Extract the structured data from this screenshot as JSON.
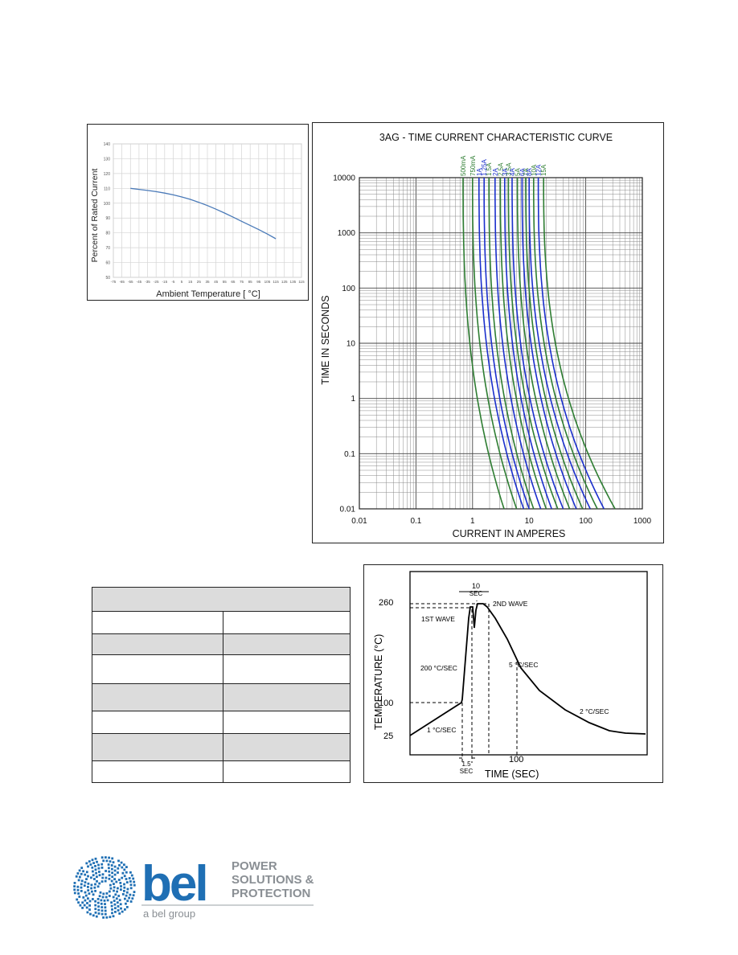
{
  "derating_chart": {
    "chart_data": {
      "type": "line",
      "xlabel": "Ambient Temperature [ °C]",
      "ylabel": "Percent of Rated Current",
      "xlim": [
        -75,
        115
      ],
      "ylim": [
        50,
        140
      ],
      "x_ticks": [
        "-75",
        "-65",
        "-55",
        "-45",
        "-35",
        "-25",
        "-15",
        "-5",
        "5",
        "15",
        "25",
        "35",
        "45",
        "55",
        "65",
        "75",
        "85",
        "95",
        "105",
        "115",
        "125",
        "135",
        "115"
      ],
      "y_ticks": [
        "50",
        "60",
        "70",
        "80",
        "90",
        "100",
        "110",
        "120",
        "130",
        "140"
      ],
      "grid": true,
      "series": [
        {
          "x": [
            -55,
            -45,
            -35,
            -25,
            -15,
            -5,
            5,
            15,
            25,
            35,
            45,
            55,
            65,
            75,
            85,
            95,
            105,
            115
          ],
          "y": [
            110,
            109.3,
            108.6,
            107.8,
            106.8,
            105.6,
            104.2,
            102.6,
            100.6,
            98.4,
            96,
            93.4,
            90.6,
            87.8,
            85,
            82.2,
            79.2,
            76
          ]
        }
      ],
      "color": "#4a7ab8"
    }
  },
  "tcc_chart": {
    "chart_data": {
      "type": "line",
      "title": "3AG - TIME CURRENT CHARACTERISTIC CURVE",
      "xlabel": "CURRENT IN AMPERES",
      "ylabel": "TIME IN SECONDS",
      "xscale": "log",
      "yscale": "log",
      "xlim": [
        0.01,
        1000
      ],
      "ylim": [
        0.01,
        10000
      ],
      "x_ticks": [
        "0.01",
        "0.1",
        "1",
        "10",
        "100",
        "1000"
      ],
      "y_ticks": [
        "0.01",
        "0.1",
        "1",
        "10",
        "100",
        "1000",
        "10000"
      ],
      "grid": true,
      "series": [
        {
          "name": "500mA",
          "current_at_10000s": 0.68,
          "current_at_0.01s": 3.6,
          "color": "#2e7d32"
        },
        {
          "name": "750mA",
          "current_at_10000s": 1.0,
          "current_at_0.01s": 6.0,
          "color": "#2e7d32"
        },
        {
          "name": "1A",
          "current_at_10000s": 1.3,
          "current_at_0.01s": 8.0,
          "color": "#1a2fcc"
        },
        {
          "name": "1.25A",
          "current_at_10000s": 1.6,
          "current_at_0.01s": 10.0,
          "color": "#1a2fcc"
        },
        {
          "name": "1.5A",
          "current_at_10000s": 1.95,
          "current_at_0.01s": 12.0,
          "color": "#2e7d32"
        },
        {
          "name": "2A",
          "current_at_10000s": 2.5,
          "current_at_0.01s": 16.0,
          "color": "#1a2fcc"
        },
        {
          "name": "2.5A",
          "current_at_10000s": 3.1,
          "current_at_0.01s": 20.0,
          "color": "#2e7d32"
        },
        {
          "name": "3A",
          "current_at_10000s": 3.7,
          "current_at_0.01s": 25.0,
          "color": "#1a2fcc"
        },
        {
          "name": "3.5A",
          "current_at_10000s": 4.3,
          "current_at_0.01s": 32.0,
          "color": "#2e7d32"
        },
        {
          "name": "4A",
          "current_at_10000s": 5.0,
          "current_at_0.01s": 40.0,
          "color": "#1a2fcc"
        },
        {
          "name": "5A",
          "current_at_10000s": 6.2,
          "current_at_0.01s": 52.0,
          "color": "#2e7d32"
        },
        {
          "name": "6A",
          "current_at_10000s": 7.5,
          "current_at_0.01s": 68.0,
          "color": "#1a2fcc"
        },
        {
          "name": "7A",
          "current_at_10000s": 8.7,
          "current_at_0.01s": 88.0,
          "color": "#2e7d32"
        },
        {
          "name": "8A",
          "current_at_10000s": 10.0,
          "current_at_0.01s": 120.0,
          "color": "#1a2fcc"
        },
        {
          "name": "10A",
          "current_at_10000s": 12.0,
          "current_at_0.01s": 160.0,
          "color": "#2e7d32"
        },
        {
          "name": "12A",
          "current_at_10000s": 14.5,
          "current_at_0.01s": 210.0,
          "color": "#1a2fcc"
        },
        {
          "name": "15A",
          "current_at_10000s": 18.0,
          "current_at_0.01s": 330.0,
          "color": "#2e7d32"
        }
      ]
    }
  },
  "solder_profile": {
    "chart_data": {
      "type": "line",
      "xlabel": "TIME (SEC)",
      "ylabel": "TEMPERATURE (°C)",
      "y_ticks": [
        "25",
        "100",
        "260"
      ],
      "x_ticks": [
        "100"
      ],
      "annotations": [
        "10",
        "SEC",
        "2ND WAVE",
        "1ST WAVE",
        "5 °C/SEC",
        "200 °C/SEC",
        "1 °C/SEC",
        "2 °C/SEC",
        "1.5",
        "SEC"
      ],
      "series": [
        {
          "x": [
            0,
            48,
            50,
            56,
            58,
            61,
            63,
            70,
            100,
            130,
            160,
            190,
            210
          ],
          "y": [
            40,
            100,
            110,
            245,
            260,
            240,
            260,
            258,
            175,
            120,
            80,
            50,
            46
          ]
        }
      ]
    }
  },
  "table": {
    "rows": 7
  },
  "logo": {
    "brand": "bel",
    "tagline_1": "POWER",
    "tagline_2": "SOLUTIONS &",
    "tagline_3": "PROTECTION",
    "group": "a bel group",
    "brand_color": "#1f6fb4",
    "gray_color": "#8a8f94"
  }
}
